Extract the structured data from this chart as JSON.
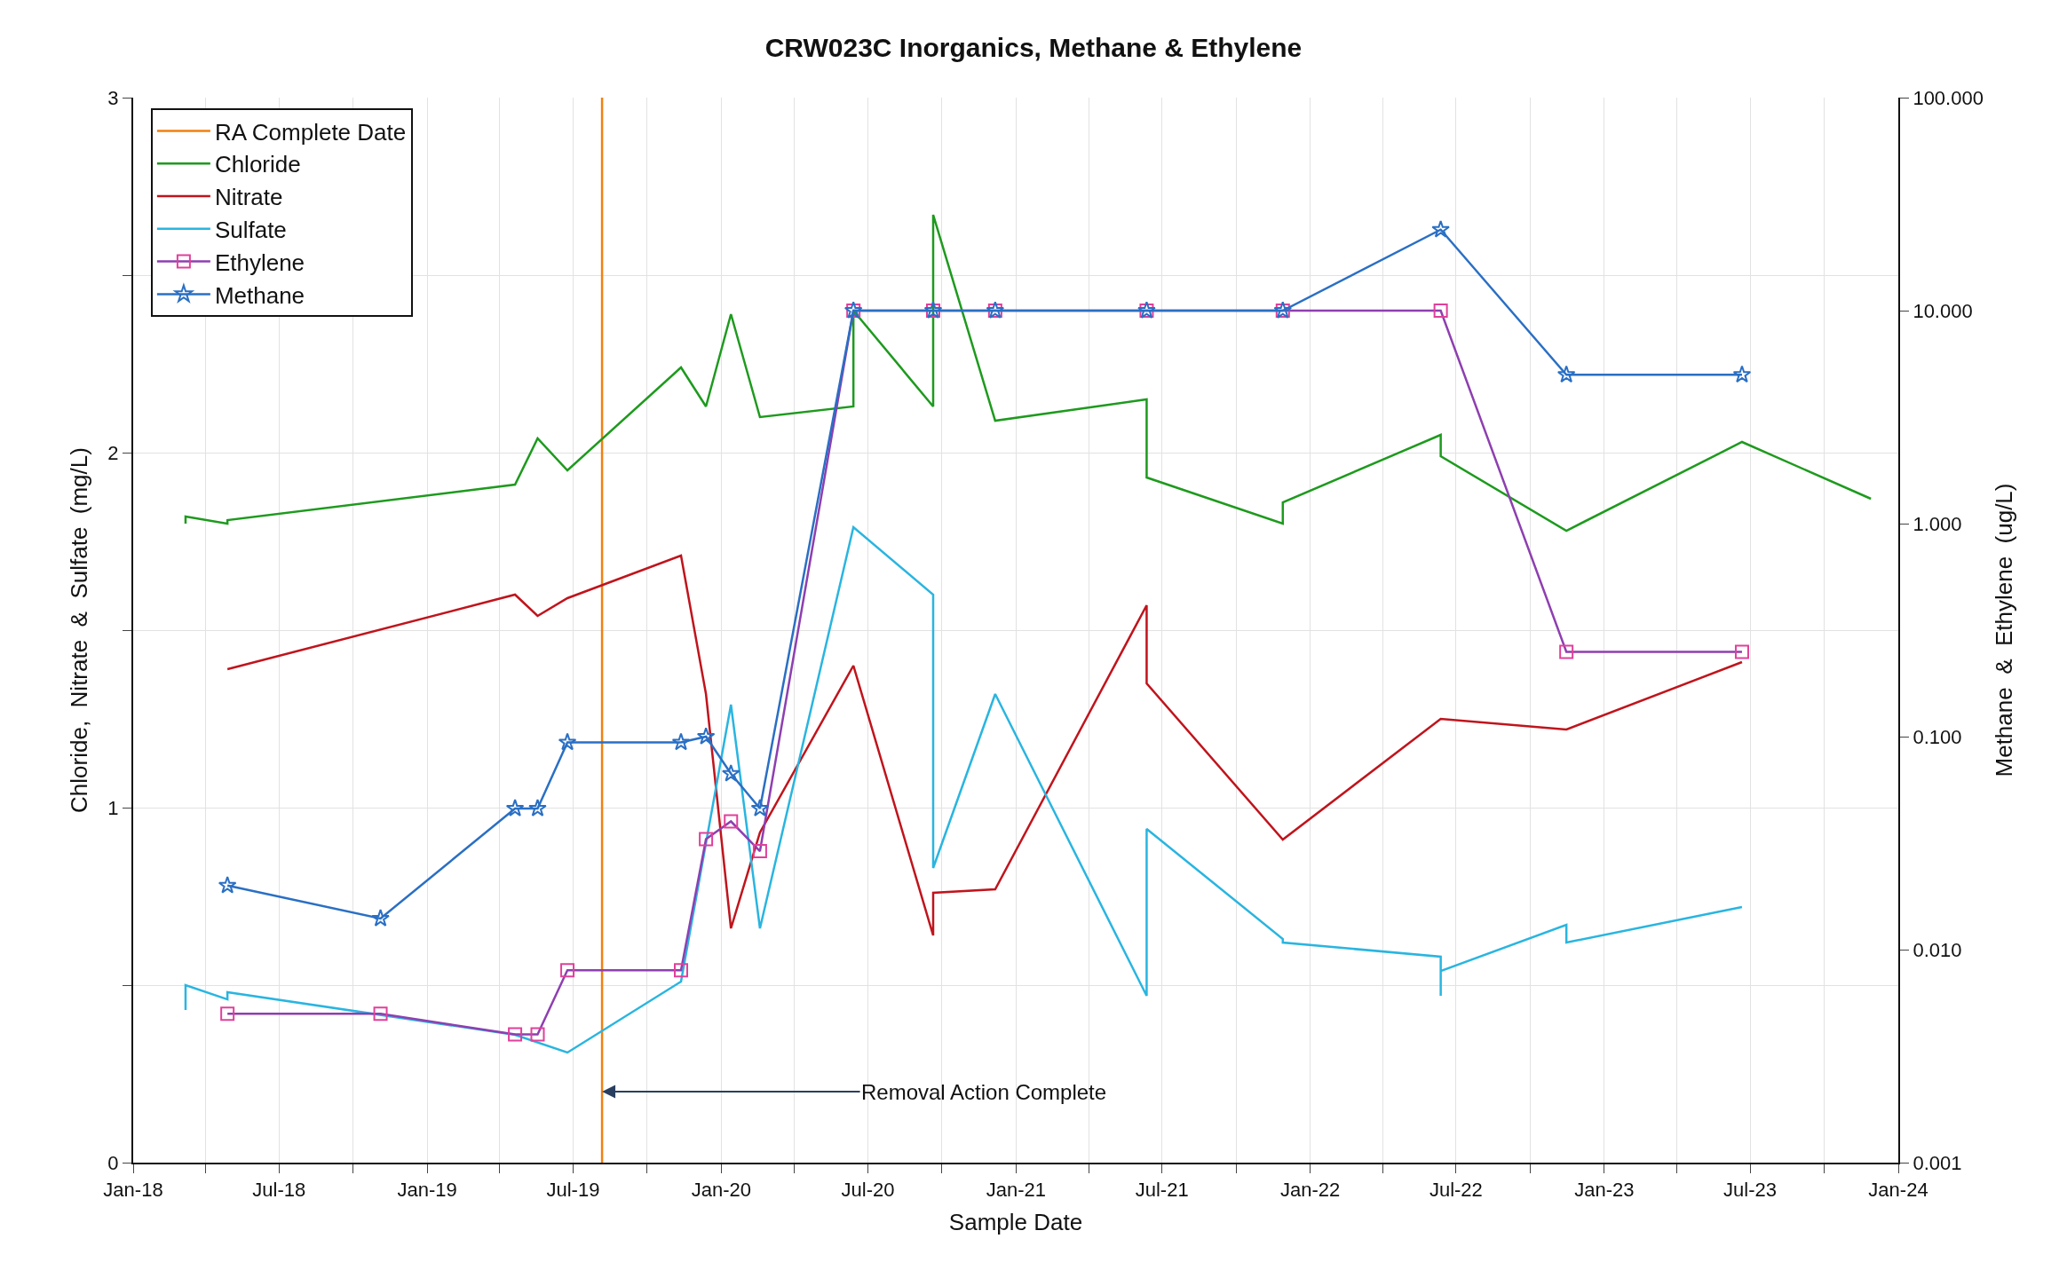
{
  "chart_data": {
    "type": "line",
    "title": "CRW023C Inorganics, Methane & Ethylene",
    "xlabel": "Sample Date",
    "ylabel": "Chloride,  Nitrate  &  Sulfate  (mg/L)",
    "y2label": "Methane  &  Ethylene  (ug/L)",
    "xlim": [
      "2018-01-01",
      "2024-01-01"
    ],
    "xticks": [
      {
        "value": "2018-01-01",
        "label": "Jan-18"
      },
      {
        "value": "2018-04-01",
        "label": null
      },
      {
        "value": "2018-07-01",
        "label": "Jul-18"
      },
      {
        "value": "2018-10-01",
        "label": null
      },
      {
        "value": "2019-01-01",
        "label": "Jan-19"
      },
      {
        "value": "2019-04-01",
        "label": null
      },
      {
        "value": "2019-07-01",
        "label": "Jul-19"
      },
      {
        "value": "2019-10-01",
        "label": null
      },
      {
        "value": "2020-01-01",
        "label": "Jan-20"
      },
      {
        "value": "2020-04-01",
        "label": null
      },
      {
        "value": "2020-07-01",
        "label": "Jul-20"
      },
      {
        "value": "2020-10-01",
        "label": null
      },
      {
        "value": "2021-01-01",
        "label": "Jan-21"
      },
      {
        "value": "2021-04-01",
        "label": null
      },
      {
        "value": "2021-07-01",
        "label": "Jul-21"
      },
      {
        "value": "2021-10-01",
        "label": null
      },
      {
        "value": "2022-01-01",
        "label": "Jan-22"
      },
      {
        "value": "2022-04-01",
        "label": null
      },
      {
        "value": "2022-07-01",
        "label": "Jul-22"
      },
      {
        "value": "2022-10-01",
        "label": null
      },
      {
        "value": "2023-01-01",
        "label": "Jan-23"
      },
      {
        "value": "2023-04-01",
        "label": null
      },
      {
        "value": "2023-07-01",
        "label": "Jul-23"
      },
      {
        "value": "2023-10-01",
        "label": null
      },
      {
        "value": "2024-01-01",
        "label": "Jan-24"
      }
    ],
    "ylim": [
      0,
      3
    ],
    "yticks": [
      0,
      {
        "value": 0.5,
        "label": null
      },
      1,
      {
        "value": 1.5,
        "label": null
      },
      2,
      {
        "value": 2.5,
        "label": null
      },
      3
    ],
    "y2lim": [
      0.001,
      100
    ],
    "y2ticks": [
      {
        "value": 0.001,
        "label": "0.001"
      },
      {
        "value": 0.01,
        "label": "0.010"
      },
      {
        "value": 0.1,
        "label": "0.100"
      },
      {
        "value": 1,
        "label": "1.000"
      },
      {
        "value": 10,
        "label": "10.000"
      },
      {
        "value": 100,
        "label": "100.000"
      }
    ],
    "log": "y2",
    "grid": true,
    "legend": "top left",
    "annotations": [
      {
        "text": "Removal Action Complete",
        "x": "2019-08-06",
        "y": 0.2
      }
    ],
    "series": [
      {
        "name": "RA Complete Date",
        "color": "#f08010",
        "marker": "none",
        "x": [
          "2019-08-06",
          "2019-08-06"
        ],
        "values": [
          0,
          3
        ]
      },
      {
        "name": "Chloride",
        "color": "#1e9a1e",
        "marker": "none",
        "x": [
          "2018-03-07",
          "2018-03-07",
          "2018-04-28",
          "2018-04-28",
          "2019-04-20",
          "2019-05-18",
          "2019-06-24",
          "2019-11-12",
          "2019-12-13",
          "2020-01-13",
          "2020-02-18",
          "2020-06-13",
          "2020-06-13",
          "2020-09-20",
          "2020-09-20",
          "2020-12-06",
          "2021-06-12",
          "2021-06-12",
          "2021-11-28",
          "2021-11-28",
          "2022-06-12",
          "2022-06-12",
          "2022-11-15",
          "2023-06-21",
          "2023-11-28"
        ],
        "values": [
          1.8,
          1.82,
          1.8,
          1.81,
          1.91,
          2.04,
          1.95,
          2.24,
          2.13,
          2.39,
          2.1,
          2.13,
          2.4,
          2.13,
          2.67,
          2.09,
          2.15,
          1.93,
          1.8,
          1.86,
          2.05,
          1.99,
          1.78,
          2.03,
          1.87
        ]
      },
      {
        "name": "Nitrate",
        "color": "#c0141c",
        "marker": "none",
        "x": [
          "2018-04-28",
          "2019-04-20",
          "2019-05-18",
          "2019-06-24",
          "2019-11-12",
          "2019-12-13",
          "2020-01-13",
          "2020-02-18",
          "2020-06-13",
          "2020-09-20",
          "2020-09-20",
          "2020-12-06",
          "2021-06-12",
          "2021-06-12",
          "2021-11-28",
          "2022-06-12",
          "2022-11-15",
          "2023-06-21"
        ],
        "values": [
          1.39,
          1.6,
          1.54,
          1.59,
          1.71,
          1.32,
          0.66,
          0.93,
          1.4,
          0.64,
          0.76,
          0.77,
          1.57,
          1.35,
          0.91,
          1.25,
          1.22,
          1.41
        ]
      },
      {
        "name": "Sulfate",
        "color": "#29b5e0",
        "marker": "none",
        "x": [
          "2018-03-07",
          "2018-03-07",
          "2018-04-28",
          "2018-04-28",
          "2019-04-20",
          "2019-06-24",
          "2019-11-12",
          "2020-01-13",
          "2020-02-18",
          "2020-06-13",
          "2020-09-20",
          "2020-09-20",
          "2020-12-06",
          "2021-06-12",
          "2021-06-12",
          "2021-11-28",
          "2021-11-28",
          "2022-06-12",
          "2022-06-12",
          "2022-06-12",
          "2022-11-15",
          "2022-11-15",
          "2023-06-21"
        ],
        "values": [
          0.43,
          0.5,
          0.46,
          0.48,
          0.36,
          0.31,
          0.51,
          1.29,
          0.66,
          1.79,
          1.6,
          0.83,
          1.32,
          0.47,
          0.94,
          0.63,
          0.62,
          0.58,
          0.47,
          0.54,
          0.67,
          0.62,
          0.72
        ]
      },
      {
        "name": "Ethylene",
        "color": "#8e3fb0",
        "marker": "square",
        "axis": "y2",
        "x": [
          "2018-04-28",
          "2018-11-04",
          "2019-04-20",
          "2019-05-18",
          "2019-06-24",
          "2019-11-12",
          "2019-12-13",
          "2020-01-13",
          "2020-02-18",
          "2020-06-13",
          "2020-09-20",
          "2020-12-06",
          "2021-06-12",
          "2021-11-28",
          "2022-06-12",
          "2022-11-15",
          "2023-06-21"
        ],
        "values": [
          0.005,
          0.005,
          0.004,
          0.004,
          0.008,
          0.008,
          0.033,
          0.04,
          0.029,
          10,
          10,
          10,
          10,
          10,
          10,
          0.25,
          0.25
        ]
      },
      {
        "name": "Methane",
        "color": "#2a6fc4",
        "marker": "star",
        "axis": "y2",
        "x": [
          "2018-04-28",
          "2018-11-04",
          "2019-04-20",
          "2019-05-18",
          "2019-06-24",
          "2019-11-12",
          "2019-12-13",
          "2020-01-13",
          "2020-02-18",
          "2020-06-13",
          "2020-09-20",
          "2020-12-06",
          "2021-06-12",
          "2021-11-28",
          "2022-06-12",
          "2022-11-15",
          "2023-06-21"
        ],
        "values": [
          0.02,
          0.014,
          0.046,
          0.046,
          0.094,
          0.094,
          0.1,
          0.067,
          0.046,
          10,
          10,
          10,
          10,
          10,
          24,
          5,
          5
        ]
      }
    ]
  }
}
